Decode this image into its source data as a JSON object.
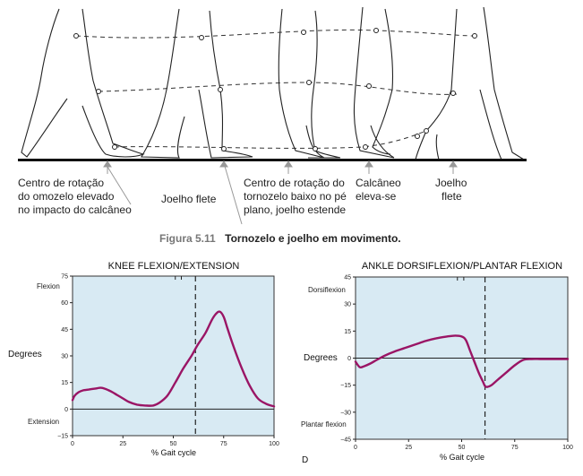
{
  "illustration": {
    "labels": [
      "Centro de rotação do omozelo elevado no impacto do calcâneo",
      "Joelho flete",
      "Centro de rotação do tornozelo baixo no pé plano, joelho estende",
      "Calcâneo eleva-se",
      "Joelho flete"
    ],
    "label_lines": [
      [
        "Centro de rotação",
        "do omozelo elevado",
        "no impacto do calcâneo"
      ],
      [
        "Joelho flete"
      ],
      [
        "Centro de rotação do",
        "tornozelo baixo no pé",
        "plano, joelho estende"
      ],
      [
        "Calcâneo",
        "eleva-se"
      ],
      [
        "Joelho",
        "flete"
      ]
    ]
  },
  "caption": {
    "label": "Figura 5.11",
    "text": "Tornozelo e joelho em movimento."
  },
  "panel_letter": "D",
  "chart_data": [
    {
      "type": "line",
      "title": "KNEE FLEXION/EXTENSION",
      "xlabel": "% Gait cycle",
      "ylabel": "Degrees",
      "upper_label": "Flexion",
      "lower_label": "Extension",
      "xlim": [
        0,
        100
      ],
      "ylim": [
        -15,
        75
      ],
      "xticks": [
        0,
        25,
        50,
        75,
        100
      ],
      "xtick_labels": [
        "0",
        "25",
        "50",
        "75",
        "100"
      ],
      "yticks": [
        -15,
        0,
        15,
        30,
        45,
        60,
        75
      ],
      "ytick_labels": [
        "−15",
        "0",
        "15",
        "30",
        "45",
        "60",
        "75"
      ],
      "toe_off_x": 61,
      "top_marks_x": [
        51,
        54
      ],
      "x": [
        0,
        1,
        3,
        5,
        8,
        11,
        14,
        16,
        19,
        22,
        25,
        28,
        32,
        36,
        40,
        43,
        47,
        51,
        55,
        59,
        62,
        66,
        69,
        71,
        73,
        75,
        77,
        80,
        84,
        88,
        92,
        96,
        100
      ],
      "y": [
        5,
        7.5,
        9.5,
        10.5,
        11,
        11.5,
        12,
        11.5,
        10,
        8,
        6,
        4,
        2.5,
        2,
        2,
        3.5,
        7.5,
        15,
        23,
        30,
        36,
        43,
        50,
        53.5,
        55,
        52,
        45,
        35,
        23,
        13,
        6,
        3,
        1.5
      ]
    },
    {
      "type": "line",
      "title": "ANKLE DORSIFLEXION/PLANTAR FLEXION",
      "xlabel": "% Gait cycle",
      "ylabel": "Degrees",
      "upper_label": "Dorsiflexion",
      "lower_label": "Plantar flexion",
      "xlim": [
        0,
        100
      ],
      "ylim": [
        -45,
        45
      ],
      "xticks": [
        0,
        25,
        50,
        75,
        100
      ],
      "xtick_labels": [
        "0",
        "25",
        "50",
        "75",
        "100"
      ],
      "yticks": [
        -45,
        -30,
        -15,
        0,
        15,
        30,
        45
      ],
      "ytick_labels": [
        "−45",
        "−30",
        "−15",
        "0",
        "15",
        "30",
        "45"
      ],
      "toe_off_x": 61,
      "top_marks_x": [
        48,
        51
      ],
      "x": [
        0,
        2,
        4,
        7,
        10,
        14,
        18,
        23,
        28,
        33,
        38,
        43,
        47,
        50,
        52,
        54,
        56,
        58,
        60,
        61,
        62,
        64,
        67,
        71,
        75,
        79,
        83,
        87,
        91,
        95,
        100
      ],
      "y": [
        -2,
        -5,
        -4.5,
        -3,
        -1,
        1.5,
        3.5,
        5.5,
        7.5,
        9.5,
        11,
        12,
        12.5,
        12,
        10,
        4,
        -2,
        -8,
        -13,
        -15.5,
        -16,
        -15,
        -12,
        -8,
        -4,
        -1,
        -0.5,
        -0.5,
        -0.5,
        -0.5,
        -0.5
      ]
    }
  ]
}
